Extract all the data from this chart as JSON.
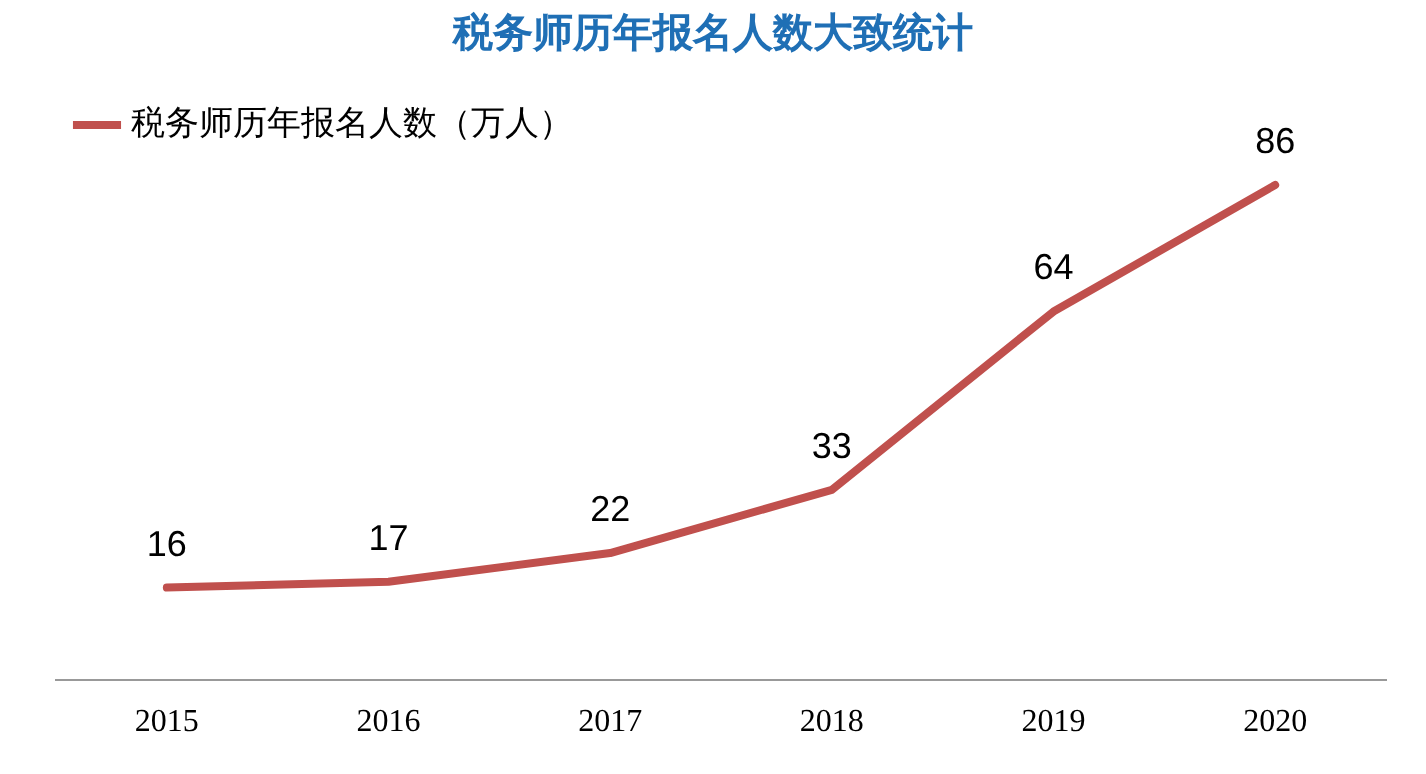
{
  "chart_data": {
    "type": "line",
    "title": "税务师历年报名人数大致统计",
    "categories": [
      "2015",
      "2016",
      "2017",
      "2018",
      "2019",
      "2020"
    ],
    "series": [
      {
        "name": "税务师历年报名人数（万人）",
        "color": "#c0504d",
        "values": [
          16,
          17,
          22,
          33,
          64,
          86
        ]
      }
    ],
    "tick_labels": "x",
    "grid": false,
    "legend": "top left",
    "marker": "none",
    "data_labels": true
  }
}
